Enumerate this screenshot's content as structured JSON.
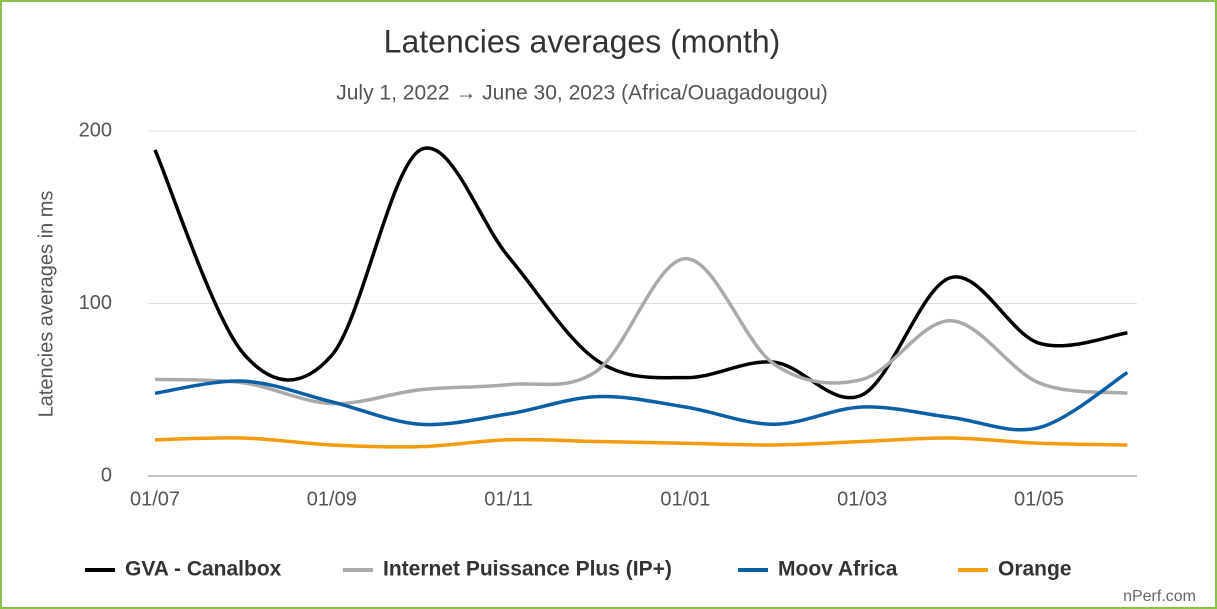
{
  "chart_data": {
    "type": "line",
    "title": "Latencies averages (month)",
    "subtitle": "July 1, 2022 → June 30, 2023 (Africa/Ouagadougou)",
    "y_label": "Latencies averages in ms",
    "credit": "nPerf.com",
    "categories": [
      "01/07",
      null,
      "01/09",
      null,
      "01/11",
      null,
      "01/01",
      null,
      "01/03",
      null,
      "01/05",
      null
    ],
    "ylim": [
      0,
      200
    ],
    "yticks": [
      0,
      100,
      200
    ],
    "grid": true,
    "legend": "bottom",
    "series": [
      {
        "name": "GVA - Canalbox",
        "color": "#000000",
        "values": [
          189,
          71,
          70,
          189,
          127,
          67,
          57,
          66,
          47,
          115,
          77,
          83
        ]
      },
      {
        "name": "Internet Puissance Plus (IP+)",
        "color": "#aaaaaa",
        "values": [
          56,
          54,
          42,
          50,
          53,
          61,
          126,
          65,
          56,
          90,
          54,
          48
        ]
      },
      {
        "name": "Moov Africa",
        "color": "#0b5fa5",
        "values": [
          48,
          55,
          43,
          30,
          36,
          46,
          40,
          30,
          40,
          34,
          28,
          60
        ]
      },
      {
        "name": "Orange",
        "color": "#f39c12",
        "values": [
          21,
          22,
          18,
          17,
          21,
          20,
          19,
          18,
          20,
          22,
          19,
          18
        ]
      }
    ]
  }
}
